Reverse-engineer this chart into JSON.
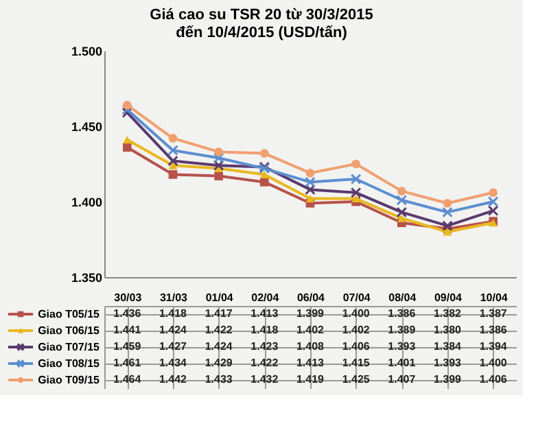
{
  "chart_data": {
    "type": "line",
    "title": [
      "Giá cao su TSR 20 từ 30/3/2015",
      "đến 10/4/2015 (USD/tấn)"
    ],
    "categories": [
      "30/03",
      "31/03",
      "01/04",
      "02/04",
      "06/04",
      "07/04",
      "08/04",
      "09/04",
      "10/04"
    ],
    "series": [
      {
        "name": "Giao T05/15",
        "color": "#b5524a",
        "marker": "square",
        "values": [
          1436,
          1418,
          1417,
          1413,
          1399,
          1400,
          1386,
          1382,
          1387
        ],
        "value_labels": [
          "1.436",
          "1.418",
          "1.417",
          "1.413",
          "1.399",
          "1.400",
          "1.386",
          "1.382",
          "1.387"
        ]
      },
      {
        "name": "Giao T06/15",
        "color": "#e8b820",
        "marker": "triangle",
        "values": [
          1441,
          1424,
          1422,
          1418,
          1402,
          1402,
          1389,
          1380,
          1386
        ],
        "value_labels": [
          "1.441",
          "1.424",
          "1.422",
          "1.418",
          "1.402",
          "1.402",
          "1.389",
          "1.380",
          "1.386"
        ]
      },
      {
        "name": "Giao T07/15",
        "color": "#5a3a6e",
        "marker": "cross",
        "values": [
          1459,
          1427,
          1424,
          1423,
          1408,
          1406,
          1393,
          1384,
          1394
        ],
        "value_labels": [
          "1.459",
          "1.427",
          "1.424",
          "1.423",
          "1.408",
          "1.406",
          "1.393",
          "1.384",
          "1.394"
        ]
      },
      {
        "name": "Giao T08/15",
        "color": "#5b8ed0",
        "marker": "cross",
        "values": [
          1461,
          1434,
          1429,
          1422,
          1413,
          1415,
          1401,
          1393,
          1400
        ],
        "value_labels": [
          "1.461",
          "1.434",
          "1.429",
          "1.422",
          "1.413",
          "1.415",
          "1.401",
          "1.393",
          "1.400"
        ]
      },
      {
        "name": "Giao T09/15",
        "color": "#f0a070",
        "marker": "circle",
        "values": [
          1464,
          1442,
          1433,
          1432,
          1419,
          1425,
          1407,
          1399,
          1406
        ],
        "value_labels": [
          "1.464",
          "1.442",
          "1.433",
          "1.432",
          "1.419",
          "1.425",
          "1.407",
          "1.399",
          "1.406"
        ]
      }
    ],
    "ylim": [
      1350,
      1500
    ],
    "yticks": [
      {
        "value": 1350,
        "label": "1.350"
      },
      {
        "value": 1400,
        "label": "1.400"
      },
      {
        "value": 1450,
        "label": "1.450"
      },
      {
        "value": 1500,
        "label": "1.500"
      }
    ],
    "grid": false,
    "legend": "bottom",
    "line_style": "solid"
  }
}
